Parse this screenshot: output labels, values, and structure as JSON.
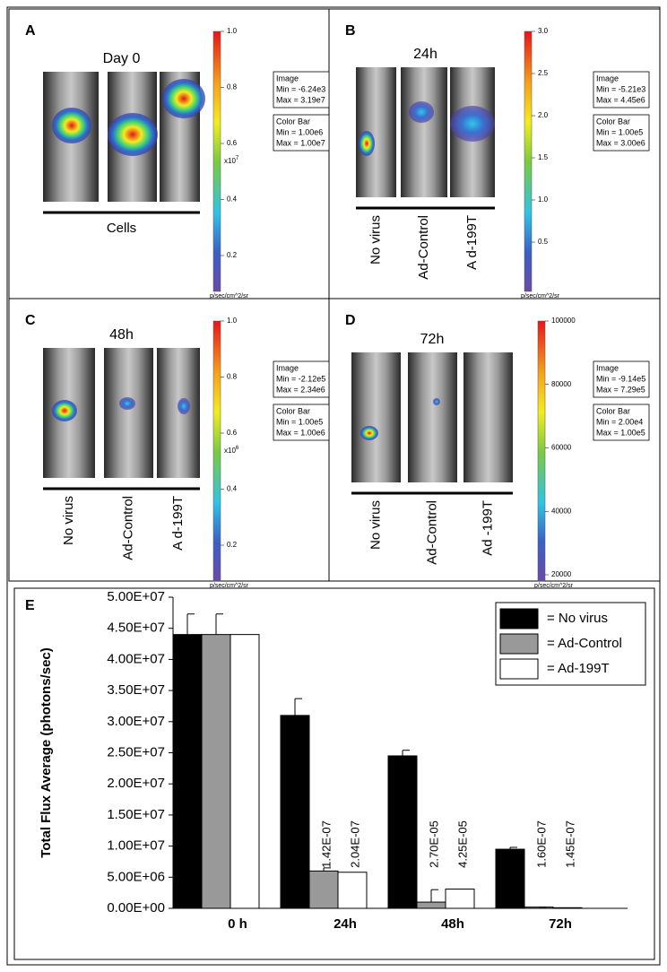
{
  "panels": [
    {
      "letter": "A",
      "time": "Day 0",
      "labels": [],
      "group_label": "Cells",
      "colorbar_ticks": [
        "1.0",
        "0.8",
        "0.6",
        "0.4",
        "0.2"
      ],
      "multiplier_base": "x10",
      "multiplier_exp": "7",
      "units": "p/sec/cm^2/sr",
      "image_title": "Image",
      "image_min": "Min = -6.24e3",
      "image_max": "Max = 3.19e7",
      "cb_title": "Color Bar",
      "cb_min": "Min = 1.00e6",
      "cb_max": "Max = 1.00e7"
    },
    {
      "letter": "B",
      "time": "24h",
      "labels": [
        "No virus",
        "Ad-Control",
        "A d-199T"
      ],
      "colorbar_ticks": [
        "3.0",
        "2.5",
        "2.0",
        "1.5",
        "1.0",
        "0.5"
      ],
      "units": "p/sec/cm^2/sr",
      "image_title": "Image",
      "image_min": "Min = -5.21e3",
      "image_max": "Max = 4.45e6",
      "cb_title": "Color Bar",
      "cb_min": "Min = 1.00e5",
      "cb_max": "Max = 3.00e6"
    },
    {
      "letter": "C",
      "time": "48h",
      "labels": [
        "No virus",
        "Ad-Control",
        "A d-199T"
      ],
      "colorbar_ticks": [
        "1.0",
        "0.8",
        "0.6",
        "0.4",
        "0.2"
      ],
      "multiplier_base": "x10",
      "multiplier_exp": "6",
      "units": "p/sec/cm^2/sr",
      "image_title": "Image",
      "image_min": "Min = -2.12e5",
      "image_max": "Max = 2.34e6",
      "cb_title": "Color Bar",
      "cb_min": "Min = 1.00e5",
      "cb_max": "Max = 1.00e6"
    },
    {
      "letter": "D",
      "time": "72h",
      "labels": [
        "No virus",
        "Ad-Control",
        "Ad -199T"
      ],
      "colorbar_ticks": [
        "100000",
        "80000",
        "60000",
        "40000",
        "20000"
      ],
      "units": "p/sec/cm^2/sr",
      "image_title": "Image",
      "image_min": "Min = -9.14e5",
      "image_max": "Max = 7.29e5",
      "cb_title": "Color Bar",
      "cb_min": "Min = 2.00e4",
      "cb_max": "Max = 1.00e5"
    }
  ],
  "chart_data": {
    "type": "bar",
    "panel_letter": "E",
    "y_label": "Total Flux Average (photons/sec)",
    "categories": [
      "0 h",
      "24h",
      "48h",
      "72h"
    ],
    "series": [
      {
        "name": "= No virus",
        "color": "#000000",
        "values": [
          44000000,
          31000000,
          24500000,
          9500000
        ],
        "errors": [
          3300000,
          2700000,
          900000,
          300000
        ]
      },
      {
        "name": "= Ad-Control",
        "color": "#999999",
        "values": [
          44000000,
          6000000,
          1000000,
          200000
        ],
        "errors": [
          3300000,
          500000,
          2000000,
          0
        ]
      },
      {
        "name": "= Ad-199T",
        "color": "#ffffff",
        "values": [
          44000000,
          5800000,
          3100000,
          100000
        ]
      }
    ],
    "annotations": [
      "1.42E-07",
      "2.04E-07",
      "2.70E-05",
      "4.25E-05",
      "1.60E-07",
      "1.45E-07"
    ],
    "ylim": [
      0,
      50000000
    ],
    "yticks": [
      {
        "value": 0,
        "label": "0.00E+00"
      },
      {
        "value": 5000000,
        "label": "5.00E+06"
      },
      {
        "value": 10000000,
        "label": "1.00E+07"
      },
      {
        "value": 15000000,
        "label": "1.50E+07"
      },
      {
        "value": 20000000,
        "label": "2.00E+07"
      },
      {
        "value": 25000000,
        "label": "2.50E+07"
      },
      {
        "value": 30000000,
        "label": "3.00E+07"
      },
      {
        "value": 35000000,
        "label": "3.50E+07"
      },
      {
        "value": 40000000,
        "label": "4.00E+07"
      },
      {
        "value": 45000000,
        "label": "4.50E+07"
      },
      {
        "value": 50000000,
        "label": "5.00E+07"
      }
    ]
  }
}
